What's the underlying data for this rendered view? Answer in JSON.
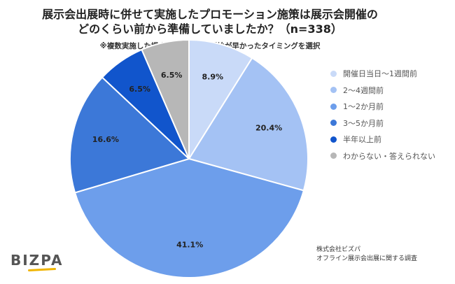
{
  "title_line1": "展示会出展時に併せて実施したプロモーション施策は展示会開催の",
  "title_line2": "どのくらい前から準備していましたか？（n=338）",
  "subtitle": "※複数実施した場合は、最も準備開始が早かったタイミングを選択",
  "footer_line1": "株式会社ビズパ",
  "footer_line2": "オフライン展示会出展に関する調査",
  "logo_text": "BIZPA",
  "chart_data": {
    "type": "pie",
    "title": "展示会出展時に併せて実施したプロモーション施策は展示会開催のどのくらい前から準備していましたか？（n=338）",
    "legend_position": "right",
    "slices": [
      {
        "label": "開催日当日〜1週間前",
        "value": 8.9,
        "display": "8.9%",
        "color": "#c9daf8"
      },
      {
        "label": "2〜4週間前",
        "value": 20.4,
        "display": "20.4%",
        "color": "#a4c2f4"
      },
      {
        "label": "1〜2か月前",
        "value": 41.1,
        "display": "41.1%",
        "color": "#6d9eeb"
      },
      {
        "label": "3〜5か月前",
        "value": 16.6,
        "display": "16.6%",
        "color": "#3c78d8"
      },
      {
        "label": "半年以上前",
        "value": 6.5,
        "display": "6.5%",
        "color": "#1155cc"
      },
      {
        "label": "わからない・答えられない",
        "value": 6.5,
        "display": "6.5%",
        "color": "#b7b7b7"
      }
    ]
  }
}
